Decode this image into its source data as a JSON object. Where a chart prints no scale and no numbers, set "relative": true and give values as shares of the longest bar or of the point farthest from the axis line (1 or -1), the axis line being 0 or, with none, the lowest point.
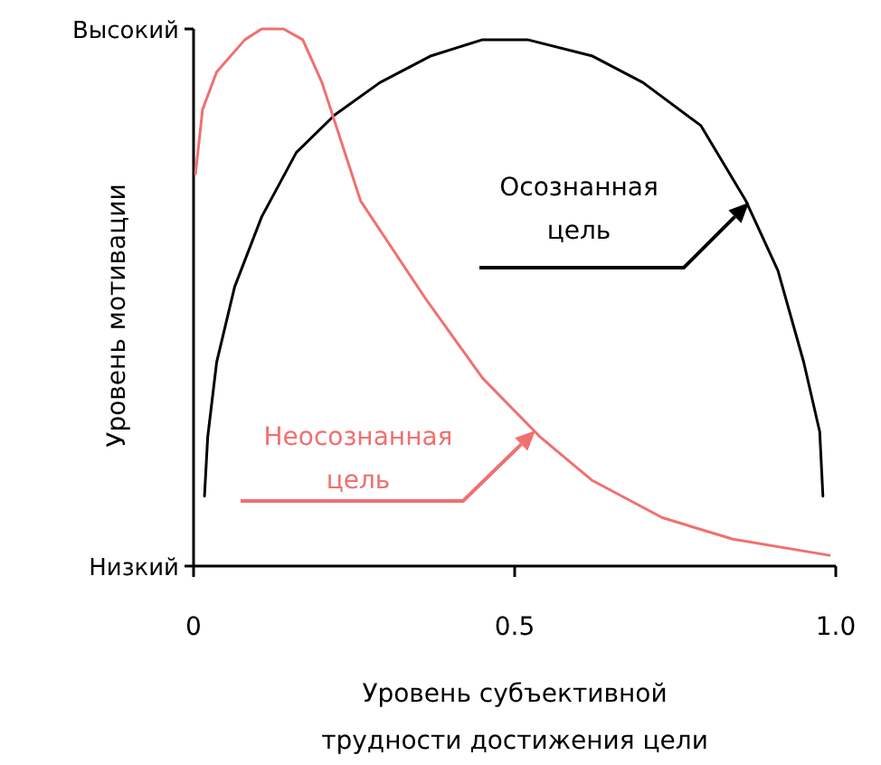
{
  "chart_data": {
    "type": "line",
    "xlabel": "Уровень субъективной трудности достижения цели",
    "ylabel": "Уровень мотивации",
    "xlim": [
      0,
      1
    ],
    "xticks": [
      0,
      0.5,
      {
        "value": 1,
        "label": "1.0"
      }
    ],
    "relative": true,
    "annotations": [
      "Низкий",
      "Высокий"
    ],
    "marker": "none",
    "line_style": "solid",
    "series": [
      {
        "name": "Осознанная цель",
        "color": "#000000",
        "x": [
          0.017,
          0.022,
          0.036,
          0.064,
          0.106,
          0.16,
          0.22,
          0.29,
          0.37,
          0.45,
          0.52,
          0.62,
          0.7,
          0.79,
          0.86,
          0.91,
          0.95,
          0.975,
          0.98
        ],
        "values": [
          0.13,
          0.24,
          0.38,
          0.52,
          0.65,
          0.77,
          0.84,
          0.9,
          0.95,
          0.98,
          0.98,
          0.95,
          0.9,
          0.82,
          0.68,
          0.55,
          0.38,
          0.25,
          0.13
        ]
      },
      {
        "name": "Неосознанная цель",
        "color": "#f07070",
        "x": [
          0.003,
          0.014,
          0.036,
          0.08,
          0.106,
          0.14,
          0.17,
          0.2,
          0.26,
          0.36,
          0.45,
          0.54,
          0.62,
          0.73,
          0.84,
          0.99
        ],
        "values": [
          0.73,
          0.85,
          0.92,
          0.98,
          1.0,
          1.0,
          0.98,
          0.9,
          0.68,
          0.5,
          0.35,
          0.24,
          0.16,
          0.09,
          0.05,
          0.02
        ]
      }
    ]
  }
}
